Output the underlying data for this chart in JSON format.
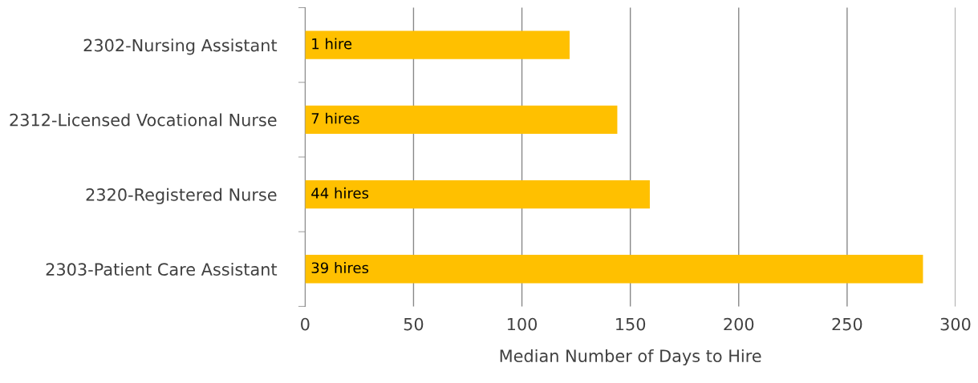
{
  "chart_data": {
    "type": "bar",
    "orientation": "horizontal",
    "xlabel": "Median Number of Days to Hire",
    "categories": [
      "2302-Nursing Assistant",
      "2312-Licensed Vocational Nurse",
      "2320-Registered Nurse",
      "2303-Patient Care Assistant"
    ],
    "values": [
      122,
      144,
      159,
      285
    ],
    "annotations": [
      "1 hire",
      "7 hires",
      "44 hires",
      "39 hires"
    ],
    "color": "#ffc000",
    "xlim": [
      0,
      300
    ],
    "xticks": [
      0,
      50,
      100,
      150,
      200,
      250,
      300
    ],
    "grid": "x"
  }
}
